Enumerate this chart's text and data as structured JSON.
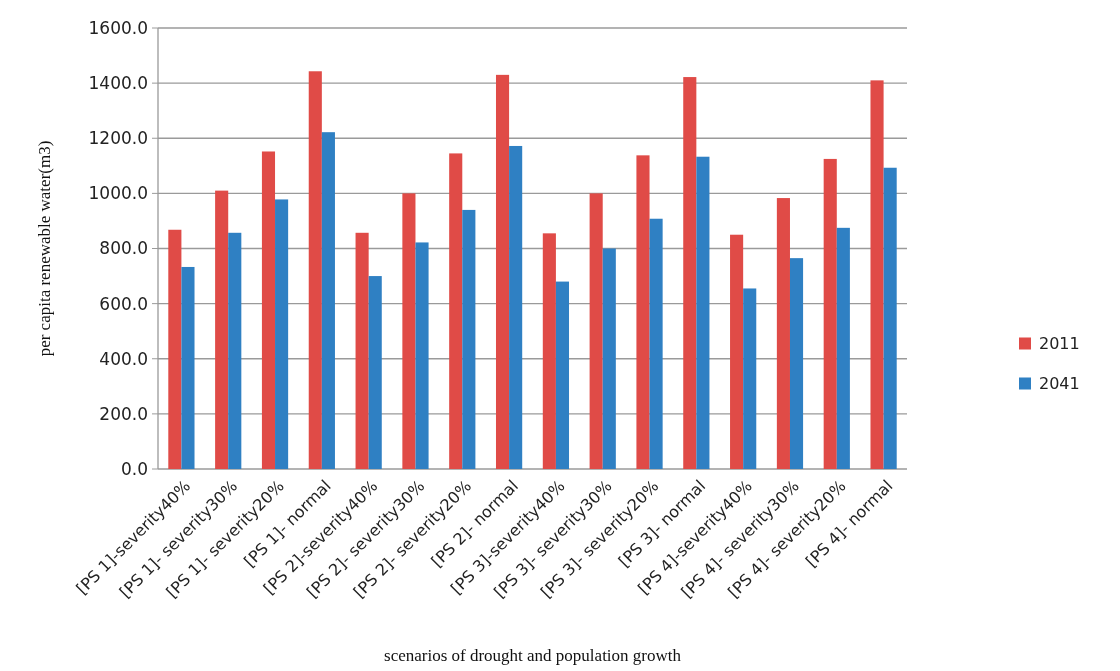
{
  "chart_data": {
    "type": "bar",
    "xlabel": "scenarios of drought and population growth",
    "ylabel": "per capita renewable water(m3)",
    "categories": [
      "[PS 1]-severity40%",
      "[PS 1]- severity30%",
      "[PS 1]- severity20%",
      "[PS 1]- normal",
      "[PS 2]-severity40%",
      "[PS 2]- severity30%",
      "[PS 2]- severity20%",
      "[PS 2]- normal",
      "[PS 3]-severity40%",
      "[PS 3]- severity30%",
      "[PS 3]- severity20%",
      "[PS 3]- normal",
      "[PS 4]-severity40%",
      "[PS 4]- severity30%",
      "[PS 4]- severity20%",
      "[PS 4]- normal"
    ],
    "series": [
      {
        "name": "2011",
        "color": "#e04b47",
        "values": [
          868,
          1010,
          1152,
          1443,
          857,
          1000,
          1145,
          1430,
          855,
          1000,
          1138,
          1422,
          850,
          983,
          1125,
          1410
        ]
      },
      {
        "name": "2041",
        "color": "#2f80c3",
        "values": [
          733,
          857,
          978,
          1222,
          700,
          822,
          940,
          1172,
          680,
          800,
          908,
          1133,
          655,
          765,
          875,
          1093
        ]
      }
    ],
    "ylim": [
      0,
      1600
    ],
    "yticks": [
      {
        "value": 0,
        "label": "0.0"
      },
      {
        "value": 200,
        "label": "200.0"
      },
      {
        "value": 400,
        "label": "400.0"
      },
      {
        "value": 600,
        "label": "600.0"
      },
      {
        "value": 800,
        "label": "800.0"
      },
      {
        "value": 1000,
        "label": "1000.0"
      },
      {
        "value": 1200,
        "label": "1200.0"
      },
      {
        "value": 1400,
        "label": "1400.0"
      },
      {
        "value": 1600,
        "label": "1600.0"
      }
    ],
    "grid": "y",
    "legend": "right"
  }
}
